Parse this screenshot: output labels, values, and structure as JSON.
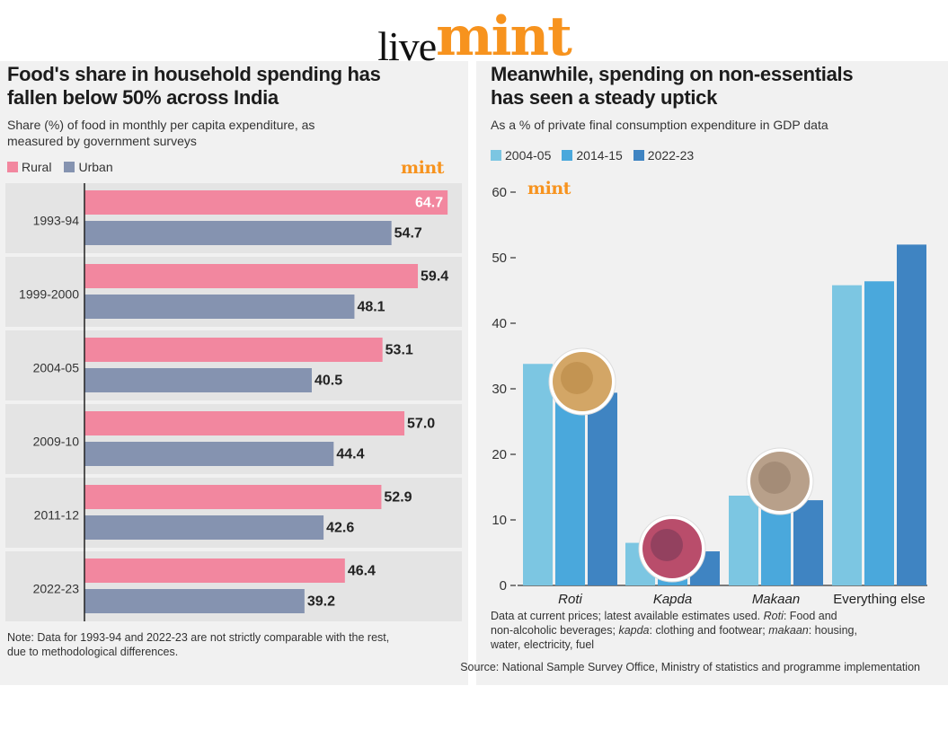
{
  "logo": {
    "live": "live",
    "mint": "mint"
  },
  "left_chart": {
    "title_line1": "Food's share in household spending has",
    "title_line2": "fallen below 50% across India",
    "subtitle_line1": "Share (%) of food in monthly per capita expenditure, as",
    "subtitle_line2": "measured by government surveys",
    "mint_mark": "mint",
    "note_line1": "Note: Data for 1993-94 and 2022-23 are not strictly comparable with the rest,",
    "note_line2": "due to methodological differences."
  },
  "right_chart": {
    "title_line1": "Meanwhile, spending on non-essentials",
    "title_line2": "has seen a steady uptick",
    "subtitle": "As a % of private final consumption expenditure in GDP data",
    "mint_mark": "mint",
    "note_line1_a": "Data at current prices; latest available estimates used. ",
    "note_line1_b": "Roti",
    "note_line1_c": ": Food and",
    "note_line2_a": "non-alcoholic beverages; ",
    "note_line2_b": "kapda",
    "note_line2_c": ": clothing and footwear; ",
    "note_line2_d": "makaan",
    "note_line2_e": ": housing,",
    "note_line3": "water, electricity, fuel",
    "source": "Source: National Sample Survey Office, Ministry of statistics and programme implementation"
  },
  "colors": {
    "rural": "#f2879f",
    "urban": "#8593b0",
    "y2004": "#7cc6e2",
    "y2014": "#4aa8dc",
    "y2022": "#3f84c2",
    "accent": "#f7931e",
    "row_band": "#e4e4e4"
  },
  "chart_data": [
    {
      "type": "bar",
      "orientation": "horizontal",
      "categories": [
        "1993-94",
        "1999-2000",
        "2004-05",
        "2009-10",
        "2011-12",
        "2022-23"
      ],
      "series": [
        {
          "name": "Rural",
          "values": [
            64.7,
            59.4,
            53.1,
            57.0,
            52.9,
            46.4
          ]
        },
        {
          "name": "Urban",
          "values": [
            54.7,
            48.1,
            40.5,
            44.4,
            42.6,
            39.2
          ]
        }
      ],
      "value_labels": {
        "Rural": [
          "64.7",
          "59.4",
          "53.1",
          "57.0",
          "52.9",
          "46.4"
        ],
        "Urban": [
          "54.7",
          "48.1",
          "40.5",
          "44.4",
          "42.6",
          "39.2"
        ]
      },
      "xlim": [
        0,
        65
      ],
      "legend": "top-left"
    },
    {
      "type": "bar",
      "categories": [
        "Roti",
        "Kapda",
        "Makaan",
        "Everything else"
      ],
      "series": [
        {
          "name": "2004-05",
          "values": [
            33.8,
            6.5,
            13.7,
            45.8
          ]
        },
        {
          "name": "2014-15",
          "values": [
            30.9,
            6.8,
            15.8,
            46.4
          ]
        },
        {
          "name": "2022-23",
          "values": [
            29.4,
            5.2,
            13.0,
            52.0
          ]
        }
      ],
      "yticks": [
        "0",
        "10",
        "20",
        "30",
        "40",
        "50",
        "60"
      ],
      "ylim": [
        0,
        60
      ],
      "legend": "top-left"
    }
  ]
}
